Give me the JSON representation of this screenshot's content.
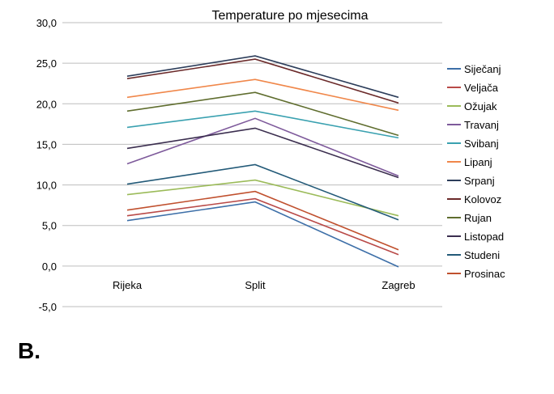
{
  "panel_label": "B.",
  "chart_data": {
    "type": "line",
    "title": "Temperature po mjesecima",
    "xlabel": "",
    "ylabel": "",
    "categories": [
      "Rijeka",
      "Split",
      "Zagreb"
    ],
    "ylim": [
      -5,
      30
    ],
    "yticks": [
      30,
      25,
      20,
      15,
      10,
      5,
      0,
      -5
    ],
    "ytick_labels": [
      "30,0",
      "25,0",
      "20,0",
      "15,0",
      "10,0",
      "5,0",
      "0,0",
      "-5,0"
    ],
    "grid": true,
    "legend_position": "right",
    "series": [
      {
        "name": "Siječanj",
        "color": "#3d6fa8",
        "values": [
          5.6,
          7.9,
          -0.1
        ]
      },
      {
        "name": "Veljača",
        "color": "#b94a48",
        "values": [
          6.2,
          8.3,
          1.4
        ]
      },
      {
        "name": "Ožujak",
        "color": "#9bbb59",
        "values": [
          8.8,
          10.6,
          6.2
        ]
      },
      {
        "name": "Travanj",
        "color": "#7e5a9b",
        "values": [
          12.6,
          18.2,
          11.1
        ]
      },
      {
        "name": "Svibanj",
        "color": "#3aa1b0",
        "values": [
          17.1,
          19.1,
          15.8
        ]
      },
      {
        "name": "Lipanj",
        "color": "#f0874a",
        "values": [
          20.8,
          23.0,
          19.2
        ]
      },
      {
        "name": "Srpanj",
        "color": "#2c3d5a",
        "values": [
          23.4,
          25.9,
          20.8
        ]
      },
      {
        "name": "Kolovoz",
        "color": "#6b2a2a",
        "values": [
          23.1,
          25.5,
          20.1
        ]
      },
      {
        "name": "Rujan",
        "color": "#5f6d2e",
        "values": [
          19.1,
          21.4,
          16.1
        ]
      },
      {
        "name": "Listopad",
        "color": "#3b2e4f",
        "values": [
          14.5,
          17.0,
          10.9
        ]
      },
      {
        "name": "Studeni",
        "color": "#235a78",
        "values": [
          10.1,
          12.5,
          5.7
        ]
      },
      {
        "name": "Prosinac",
        "color": "#c0502e",
        "values": [
          6.9,
          9.2,
          2.0
        ]
      }
    ]
  }
}
